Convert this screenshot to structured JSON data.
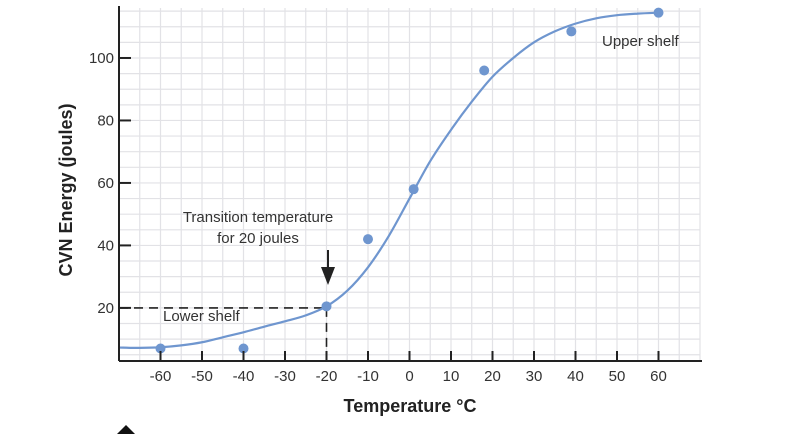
{
  "chart_data": {
    "type": "scatter",
    "xlabel": "Temperature °C",
    "ylabel": "CVN Energy (joules)",
    "xlim": [
      -70,
      70
    ],
    "ylim": [
      3,
      116
    ],
    "x_ticks": [
      -60,
      -50,
      -40,
      -30,
      -20,
      -10,
      0,
      10,
      20,
      30,
      40,
      50,
      60
    ],
    "y_ticks": [
      20,
      40,
      60,
      80,
      100
    ],
    "grid": true,
    "colors": {
      "series": "#6f96cf",
      "axis": "#222222",
      "grid": "#e2e2e6",
      "background": "#ffffff"
    },
    "series": [
      {
        "kind": "points",
        "x": [
          -60,
          -40,
          -20,
          -10,
          1,
          18,
          39,
          60
        ],
        "y": [
          7,
          7,
          20.5,
          42,
          58,
          96,
          108.5,
          114.5
        ]
      },
      {
        "kind": "curve",
        "x": [
          -70,
          -65,
          -60,
          -55,
          -50,
          -45,
          -40,
          -35,
          -30,
          -25,
          -20,
          -15,
          -10,
          -5,
          0,
          5,
          10,
          15,
          20,
          25,
          30,
          35,
          40,
          45,
          50,
          55,
          60
        ],
        "y": [
          7.3,
          7.2,
          7.4,
          8,
          9,
          10.6,
          12.2,
          14,
          15.7,
          17.6,
          20.5,
          25.5,
          33,
          43,
          55,
          67,
          77,
          86,
          94,
          100,
          105,
          108.5,
          111,
          112.7,
          113.7,
          114.2,
          114.5
        ]
      }
    ],
    "reference": {
      "x": -20,
      "y": 20
    },
    "annotations": {
      "transition_line1": "Transition temperature",
      "transition_line2": "for 20 joules",
      "lower_shelf": "Lower shelf",
      "upper_shelf": "Upper shelf"
    }
  }
}
